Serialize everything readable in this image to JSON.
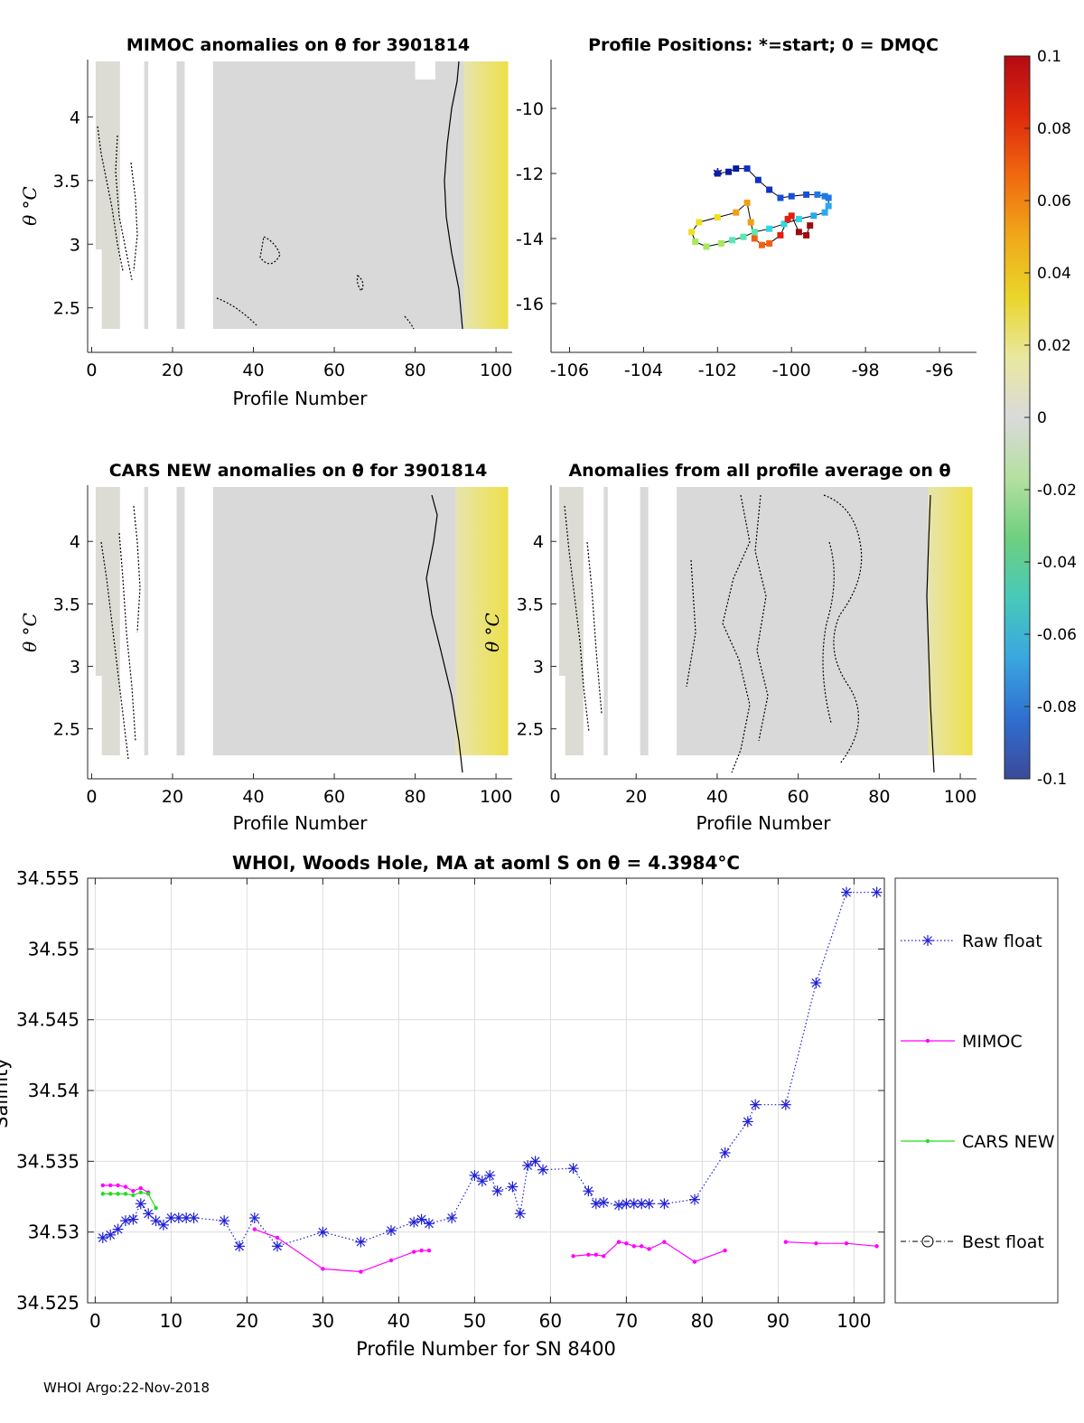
{
  "footer": "WHOI Argo:22-Nov-2018",
  "colors": {
    "raw": "#1f1fd6",
    "mimoc": "#ff00ff",
    "cars": "#22dd22",
    "best": "#000000",
    "contour": "#000000"
  },
  "colorbar": {
    "ticks": [
      "0.1",
      "0.08",
      "0.06",
      "0.04",
      "0.02",
      "0",
      "-0.02",
      "-0.04",
      "-0.06",
      "-0.08",
      "-0.1"
    ],
    "stops": [
      "#3b4a99",
      "#2f6fd0",
      "#3aa6e0",
      "#47c9b9",
      "#6fcf80",
      "#b5e0a0",
      "#dadada",
      "#e8e8a0",
      "#ead52a",
      "#f0a81a",
      "#f06a10",
      "#de2a0c",
      "#b40a14"
    ]
  },
  "chart_data": [
    {
      "id": "mimoc",
      "type": "heatmap",
      "title": "MIMOC anomalies on θ  for 3901814",
      "xlabel": "Profile Number",
      "ylabel": "θ °C",
      "xlim": [
        -1,
        104
      ],
      "ylim": [
        2.15,
        4.45
      ],
      "xticks": [
        "0",
        "20",
        "40",
        "60",
        "80",
        "100"
      ],
      "yticks": [
        "2.5",
        "3",
        "3.5",
        "4"
      ],
      "gaps": [
        [
          7,
          13
        ],
        [
          14,
          21
        ],
        [
          23,
          30
        ],
        [
          80,
          85
        ]
      ],
      "yellow_from": 92
    },
    {
      "id": "positions",
      "type": "scatter",
      "title": "Profile Positions: *=start; 0 = DMQC",
      "xlim": [
        -106.5,
        -95
      ],
      "ylim": [
        -17.5,
        -8.5
      ],
      "xticks": [
        "-106",
        "-104",
        "-102",
        "-100",
        "-98",
        "-96"
      ],
      "yticks": [
        "-10",
        "-12",
        "-14",
        "-16"
      ],
      "start": [
        -102.0,
        -12.0
      ],
      "lon": [
        -102.0,
        -101.7,
        -101.5,
        -101.2,
        -100.9,
        -100.6,
        -100.3,
        -100.0,
        -99.6,
        -99.3,
        -99.1,
        -99.0,
        -99.0,
        -99.1,
        -99.4,
        -99.8,
        -100.2,
        -100.6,
        -101.0,
        -101.3,
        -101.6,
        -101.9,
        -102.3,
        -102.6,
        -102.7,
        -102.5,
        -102.0,
        -101.5,
        -101.2,
        -101.1,
        -101.0,
        -100.8,
        -100.6,
        -100.3,
        -100.1,
        -100.0,
        -99.8,
        -99.6,
        -99.5
      ],
      "lat": [
        -12.0,
        -11.95,
        -11.85,
        -11.85,
        -12.2,
        -12.5,
        -12.75,
        -12.7,
        -12.65,
        -12.65,
        -12.7,
        -12.75,
        -13.0,
        -13.2,
        -13.3,
        -13.4,
        -13.55,
        -13.7,
        -13.8,
        -13.95,
        -14.05,
        -14.15,
        -14.25,
        -14.1,
        -13.8,
        -13.5,
        -13.35,
        -13.2,
        -12.9,
        -13.5,
        -14.0,
        -14.2,
        -14.15,
        -13.9,
        -13.4,
        -13.3,
        -13.8,
        -13.9,
        -13.6
      ]
    },
    {
      "id": "cars",
      "type": "heatmap",
      "title": "CARS NEW anomalies on θ for 3901814",
      "xlabel": "Profile Number",
      "ylabel": "θ °C",
      "xlim": [
        -1,
        104
      ],
      "ylim": [
        2.1,
        4.45
      ],
      "xticks": [
        "0",
        "20",
        "40",
        "60",
        "80",
        "100"
      ],
      "yticks": [
        "2.5",
        "3",
        "3.5",
        "4"
      ],
      "gaps": [
        [
          7,
          13
        ],
        [
          14,
          21
        ],
        [
          23,
          30
        ]
      ],
      "yellow_from": 90
    },
    {
      "id": "avg",
      "type": "heatmap",
      "title": "Anomalies from all profile average on θ",
      "xlabel": "Profile Number",
      "ylabel": "θ °C",
      "xlim": [
        -1,
        104
      ],
      "ylim": [
        2.1,
        4.45
      ],
      "xticks": [
        "0",
        "20",
        "40",
        "60",
        "80",
        "100"
      ],
      "yticks": [
        "2.5",
        "3",
        "3.5",
        "4"
      ],
      "gaps": [
        [
          7,
          12
        ],
        [
          13,
          21
        ],
        [
          23,
          30
        ]
      ],
      "yellow_from": 92
    },
    {
      "id": "salinity",
      "type": "line",
      "title": "WHOI, Woods Hole, MA at aoml S on θ = 4.3984°C",
      "xlabel": "Profile Number for SN 8400",
      "ylabel": "Salinity",
      "xlim": [
        -1,
        104
      ],
      "ylim": [
        34.525,
        34.555
      ],
      "xticks": [
        "0",
        "10",
        "20",
        "30",
        "40",
        "50",
        "60",
        "70",
        "80",
        "90",
        "100"
      ],
      "yticks": [
        "34.525",
        "34.53",
        "34.535",
        "34.54",
        "34.545",
        "34.55",
        "34.555"
      ],
      "legend": [
        "Raw float",
        "MIMOC",
        "CARS NEW",
        "Best float"
      ],
      "series": [
        {
          "name": "Raw float",
          "x": [
            1,
            2,
            3,
            4,
            5,
            6,
            7,
            8,
            9,
            10,
            11,
            12,
            13,
            17,
            19,
            21,
            24,
            30,
            35,
            39,
            42,
            43,
            44,
            47,
            50,
            51,
            52,
            53,
            55,
            56,
            57,
            58,
            59,
            63,
            65,
            66,
            67,
            69,
            70,
            71,
            72,
            73,
            75,
            79,
            83,
            86,
            87,
            91,
            95,
            99,
            103
          ],
          "y": [
            34.5296,
            34.5298,
            34.5302,
            34.5308,
            34.5309,
            34.532,
            34.5313,
            34.5308,
            34.5305,
            34.531,
            34.531,
            34.531,
            34.531,
            34.5308,
            34.529,
            34.531,
            34.529,
            34.53,
            34.5293,
            34.5301,
            34.5307,
            34.5309,
            34.5306,
            34.531,
            34.534,
            34.5336,
            34.534,
            34.5329,
            34.5332,
            34.5313,
            34.5347,
            34.535,
            34.5344,
            34.5345,
            34.5329,
            34.532,
            34.5321,
            34.5319,
            34.532,
            34.532,
            34.532,
            34.532,
            34.532,
            34.5323,
            34.5356,
            34.5378,
            34.539,
            34.539,
            34.5476,
            34.554,
            34.554
          ]
        },
        {
          "name": "MIMOC",
          "x": [
            1,
            2,
            3,
            4,
            5,
            6,
            7,
            21,
            24,
            30,
            35,
            39,
            42,
            43,
            44,
            63,
            65,
            66,
            67,
            69,
            70,
            71,
            72,
            73,
            75,
            79,
            83,
            91,
            95,
            99,
            103
          ],
          "y": [
            34.5333,
            34.5333,
            34.5333,
            34.5332,
            34.5329,
            34.5331,
            34.5328,
            34.5302,
            34.5296,
            34.5274,
            34.5272,
            34.528,
            34.5286,
            34.5287,
            34.5287,
            34.5283,
            34.5284,
            34.5284,
            34.5283,
            34.5293,
            34.5292,
            34.529,
            34.529,
            34.5288,
            34.5293,
            34.5279,
            34.5287,
            34.5293,
            34.5292,
            34.5292,
            34.529
          ],
          "break_after": [
            6,
            14,
            26
          ]
        },
        {
          "name": "CARS NEW",
          "x": [
            1,
            2,
            3,
            4,
            5,
            6,
            7,
            8
          ],
          "y": [
            34.5327,
            34.5327,
            34.5327,
            34.5327,
            34.5326,
            34.5328,
            34.5327,
            34.5317
          ]
        }
      ]
    }
  ]
}
